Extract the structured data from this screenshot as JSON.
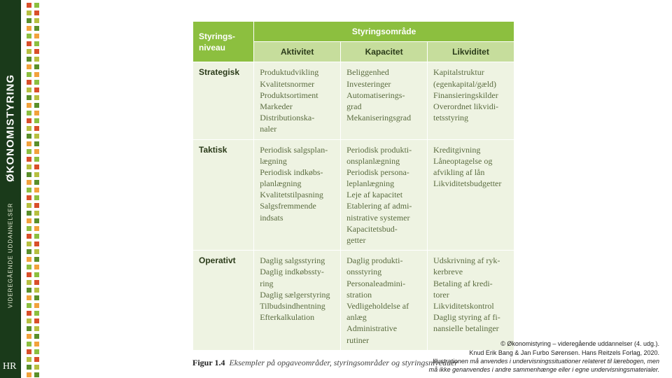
{
  "spine": {
    "title": "ØKONOMISTYRING",
    "subtitle": "VIDEREGÅENDE UDDANNELSER",
    "logo": "HR",
    "bg_dark": "#1a3a1a",
    "text_white": "#ffffff",
    "text_sub": "#e8f0d8",
    "dot_colors": [
      "#d94f2a",
      "#f2a23c",
      "#b7bf3f",
      "#8cbf3f",
      "#5a8f2a"
    ]
  },
  "table": {
    "header_bg": "#8cbf3f",
    "subheader_bg": "#c6dd9c",
    "cell_bg": "#eef3e2",
    "col_widths_pct": [
      19,
      27,
      27,
      27
    ],
    "top_left": "Styrings-\nniveau",
    "top_right": "Styringsområde",
    "sub_headers": [
      "Aktivitet",
      "Kapacitet",
      "Likviditet"
    ],
    "rows": [
      {
        "label": "Strategisk",
        "cells": [
          "Produktudvikling\nKvalitetsnormer\nProduktsortiment\nMarkeder\nDistributionska-\nnaler",
          "Beliggenhed\nInvesteringer\nAutomatiserings-\ngrad\nMekaniseringsgrad",
          "Kapitalstruktur\n(egenkapital/gæld)\nFinansieringskilder\nOverordnet likvidi-\ntetsstyring"
        ]
      },
      {
        "label": "Taktisk",
        "cells": [
          "Periodisk salgsplan-\nlægning\nPeriodisk indkøbs-\nplanlægning\nKvalitetstilpasning\nSalgsfremmende\nindsats",
          "Periodisk produkti-\nonsplanlægning\nPeriodisk persona-\nleplanlægning\nLeje af kapacitet\nEtablering af admi-\nnistrative systemer\nKapacitetsbud-\ngetter",
          "Kreditgivning\nLåneoptagelse og\nafvikling af lån\nLikviditetsbudgetter"
        ]
      },
      {
        "label": "Operativt",
        "cells": [
          "Daglig salgsstyring\nDaglig indkøbssty-\nring\nDaglig sælgerstyring\nTilbudsindhentning\nEfterkalkulation",
          "Daglig produkti-\nonsstyring\nPersonaleadmini-\nstration\nVedligeholdelse af\nanlæg\nAdministrative\nrutiner",
          "Udskrivning af ryk-\nkerbreve\nBetaling af kredi-\ntorer\nLikviditetskontrol\nDaglig styring af fi-\nnansielle betalinger"
        ]
      }
    ]
  },
  "caption": {
    "label": "Figur 1.4",
    "text": "Eksempler på opgaveområder, styringsområder og styringsniveauer"
  },
  "copyright": {
    "line1": "© Økonomistyring – videregående uddannelser (4. udg.).",
    "line2": "Knud Erik Bang & Jan Furbo Sørensen. Hans Reitzels Forlag, 2020.",
    "line3": "Illustrationen må anvendes i undervisningssituationer relateret til lærebogen, men",
    "line4": "må ikke genanvendes i andre sammenhænge eller i egne undervisningsmaterialer."
  }
}
